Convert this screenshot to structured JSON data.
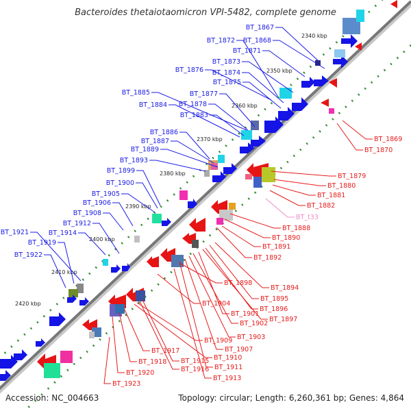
{
  "title": "Bacteroides thetaiotaomicron VPI-5482, complete genome",
  "footer": {
    "accession": "Accession: NC_004663",
    "summary": "Topology: circular; Length: 6,260,361 bp; Genes: 4,864"
  },
  "colors": {
    "forward_label": "#1a1ae6",
    "reverse_label": "#e61a1a",
    "rna_label": "#f08cc8",
    "backbone": "#8a8a8a",
    "tick_dots": "#2e8b2e"
  },
  "ticks": [
    {
      "label": "2340 kbp"
    },
    {
      "label": "2350 kbp"
    },
    {
      "label": "2360 kbp"
    },
    {
      "label": "2370 kbp"
    },
    {
      "label": "2380 kbp"
    },
    {
      "label": "2390 kbp"
    },
    {
      "label": "2400 kbp"
    },
    {
      "label": "2410 kbp"
    },
    {
      "label": "2420 kbp"
    }
  ],
  "forward_labels": [
    "BT_1867",
    "BT_1868",
    "BT_1872",
    "BT_1871",
    "BT_1873",
    "BT_1876",
    "BT_1874",
    "BT_1875",
    "BT_1885",
    "BT_1877",
    "BT_1884",
    "BT_1878",
    "BT_1883",
    "BT_1886",
    "BT_1887",
    "BT_1889",
    "BT_1893",
    "BT_1899",
    "BT_1900",
    "BT_1905",
    "BT_1906",
    "BT_1908",
    "BT_1912",
    "BT_1921",
    "BT_1914",
    "BT_1919",
    "BT_1922"
  ],
  "reverse_labels": [
    "BT_1869",
    "BT_1870",
    "BT_1879",
    "BT_1880",
    "BT_1881",
    "BT_1882",
    "BT_t33",
    "BT_1888",
    "BT_1890",
    "BT_1891",
    "BT_1892",
    "BT_1894",
    "BT_1895",
    "BT_1898",
    "BT_1896",
    "BT_1897",
    "BT_1904",
    "BT_1901",
    "BT_1902",
    "BT_1903",
    "BT_1909",
    "BT_1907",
    "BT_1910",
    "BT_1917",
    "BT_1911",
    "BT_1918",
    "BT_1915",
    "BT_1916",
    "BT_1920",
    "BT_1913",
    "BT_1923"
  ]
}
